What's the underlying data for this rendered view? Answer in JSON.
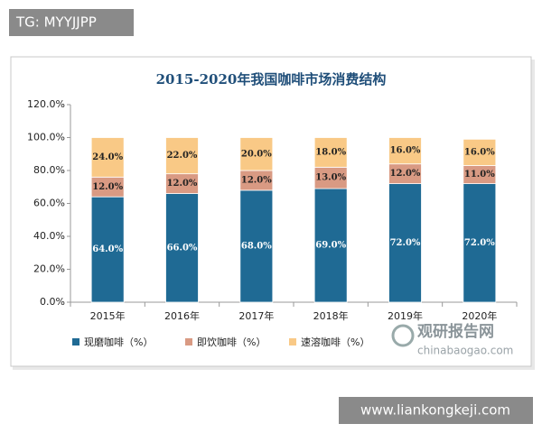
{
  "overlay": {
    "tag": "TG: MYYJJPP",
    "watermark_cn": "观研报告网",
    "watermark_en": "chinabaogao.com",
    "site": "www.liankongkeji.com"
  },
  "chart_data": {
    "type": "stacked-bar",
    "title": "2015-2020年我国咖啡市场消费结构",
    "categories": [
      "2015年",
      "2016年",
      "2017年",
      "2018年",
      "2019年",
      "2020年"
    ],
    "series": [
      {
        "name": "现磨咖啡（%）",
        "color": "#1f6a94",
        "values": [
          64,
          66,
          68,
          69,
          72,
          72
        ],
        "value_labels": [
          "64.0%",
          "66.0%",
          "68.0%",
          "69.0%",
          "72.0%",
          "72.0%"
        ]
      },
      {
        "name": "即饮咖啡（%）",
        "color": "#d99a83",
        "values": [
          12,
          12,
          12,
          13,
          12,
          11
        ],
        "value_labels": [
          "12.0%",
          "12.0%",
          "12.0%",
          "13.0%",
          "12.0%",
          "11.0%"
        ]
      },
      {
        "name": "速溶咖啡（%）",
        "color": "#f9c986",
        "values": [
          24,
          22,
          20,
          18,
          16,
          16
        ],
        "value_labels": [
          "24.0%",
          "22.0%",
          "20.0%",
          "18.0%",
          "16.0%",
          "16.0%"
        ]
      }
    ],
    "ylim": [
      0,
      120
    ],
    "yticks": [
      {
        "value": 0,
        "label": "0.0%"
      },
      {
        "value": 20,
        "label": "20.0%"
      },
      {
        "value": 40,
        "label": "40.0%"
      },
      {
        "value": 60,
        "label": "60.0%"
      },
      {
        "value": 80,
        "label": "80.0%"
      },
      {
        "value": 100,
        "label": "100.0%"
      },
      {
        "value": 120,
        "label": "120.0%"
      }
    ],
    "grid": false,
    "legend": "bottom"
  }
}
